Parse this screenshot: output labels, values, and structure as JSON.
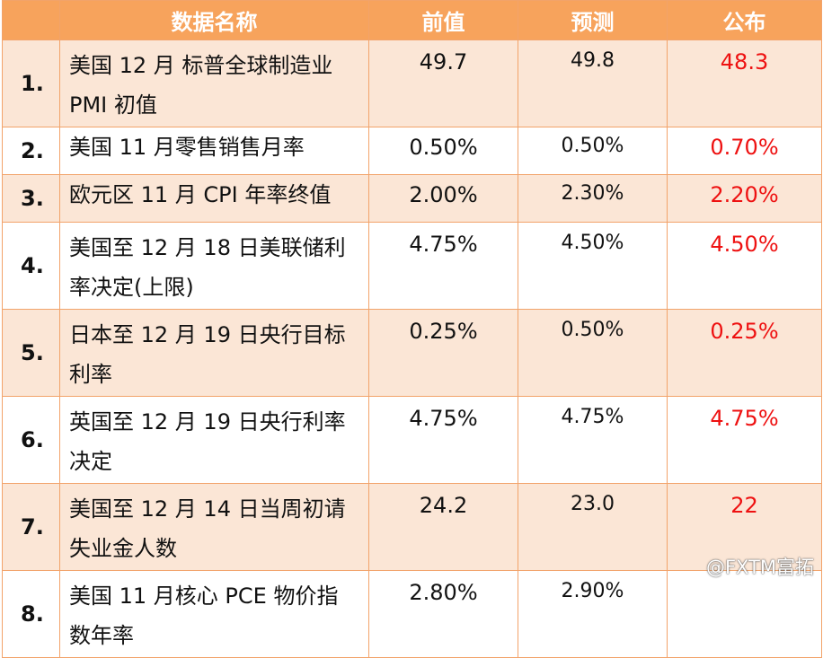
{
  "headers": {
    "name": "数据名称",
    "prev": "前值",
    "forecast": "预测",
    "published": "公布"
  },
  "rows": [
    {
      "num": "1.",
      "name_line1": "美国 12 月 标普全球制造业",
      "name_line2": "PMI 初值",
      "prev": "49.7",
      "forecast": "49.8",
      "published": "48.3"
    },
    {
      "num": "2.",
      "name_line1": "美国 11 月零售销售月率",
      "name_line2": "",
      "prev": "0.50%",
      "forecast": "0.50%",
      "published": "0.70%"
    },
    {
      "num": "3.",
      "name_line1": "欧元区 11 月 CPI 年率终值",
      "name_line2": "",
      "prev": "2.00%",
      "forecast": "2.30%",
      "published": "2.20%"
    },
    {
      "num": "4.",
      "name_line1": "美国至 12 月 18 日美联储利",
      "name_line2": "率决定(上限)",
      "prev": "4.75%",
      "forecast": "4.50%",
      "published": "4.50%"
    },
    {
      "num": "5.",
      "name_line1": " 日本至 12 月 19 日央行目标",
      "name_line2": "利率",
      "prev": "0.25%",
      "forecast": "0.50%",
      "published": "0.25%"
    },
    {
      "num": "6.",
      "name_line1": "英国至 12 月 19 日央行利率",
      "name_line2": "决定",
      "prev": "4.75%",
      "forecast": "4.75%",
      "published": "4.75%"
    },
    {
      "num": "7.",
      "name_line1": " 美国至 12 月 14 日当周初请",
      "name_line2": "失业金人数",
      "prev": "24.2",
      "forecast": "23.0",
      "published": "22"
    },
    {
      "num": "8.",
      "name_line1": "美国 11 月核心 PCE 物价指",
      "name_line2": "数年率",
      "prev": "2.80%",
      "forecast": "2.90%",
      "published": ""
    }
  ],
  "watermark": "@FXTM富拓"
}
